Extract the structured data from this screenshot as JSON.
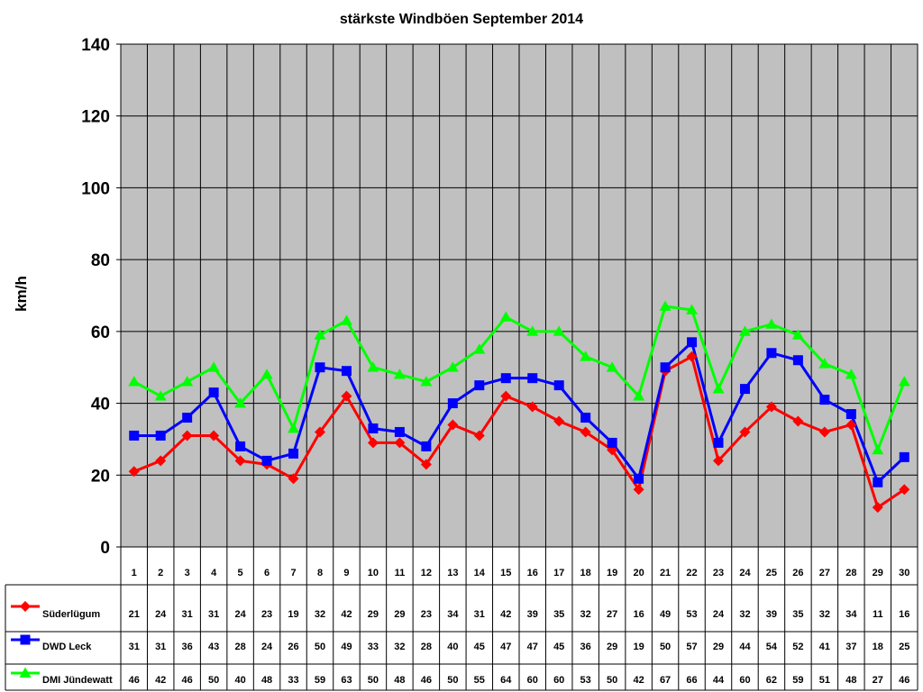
{
  "chart_data": {
    "type": "line",
    "title": "stärkste Windböen September 2014",
    "ylabel": "km/h",
    "xlabel": "",
    "ylim": [
      0,
      140
    ],
    "yticks": [
      0,
      20,
      40,
      60,
      80,
      100,
      120,
      140
    ],
    "grid": true,
    "legend_placement": "data-table-left",
    "categories": [
      "1",
      "2",
      "3",
      "4",
      "5",
      "6",
      "7",
      "8",
      "9",
      "10",
      "11",
      "12",
      "13",
      "14",
      "15",
      "16",
      "17",
      "18",
      "19",
      "20",
      "21",
      "22",
      "23",
      "24",
      "25",
      "26",
      "27",
      "28",
      "29",
      "30"
    ],
    "series": [
      {
        "name": "Süderlügum",
        "color": "#ff0000",
        "marker": "diamond",
        "values": [
          21,
          24,
          31,
          31,
          24,
          23,
          19,
          32,
          42,
          29,
          29,
          23,
          34,
          31,
          42,
          39,
          35,
          32,
          27,
          16,
          49,
          53,
          24,
          32,
          39,
          35,
          32,
          34,
          11,
          16
        ]
      },
      {
        "name": "DWD Leck",
        "color": "#0000ff",
        "marker": "square",
        "values": [
          31,
          31,
          36,
          43,
          28,
          24,
          26,
          50,
          49,
          33,
          32,
          28,
          40,
          45,
          47,
          47,
          45,
          36,
          29,
          19,
          50,
          57,
          29,
          44,
          54,
          52,
          41,
          37,
          18,
          25
        ]
      },
      {
        "name": "DMI Jündewatt",
        "color": "#00ff00",
        "marker": "triangle",
        "values": [
          46,
          42,
          46,
          50,
          40,
          48,
          33,
          59,
          63,
          50,
          48,
          46,
          50,
          55,
          64,
          60,
          60,
          53,
          50,
          42,
          67,
          66,
          44,
          60,
          62,
          59,
          51,
          48,
          27,
          46
        ]
      }
    ]
  }
}
